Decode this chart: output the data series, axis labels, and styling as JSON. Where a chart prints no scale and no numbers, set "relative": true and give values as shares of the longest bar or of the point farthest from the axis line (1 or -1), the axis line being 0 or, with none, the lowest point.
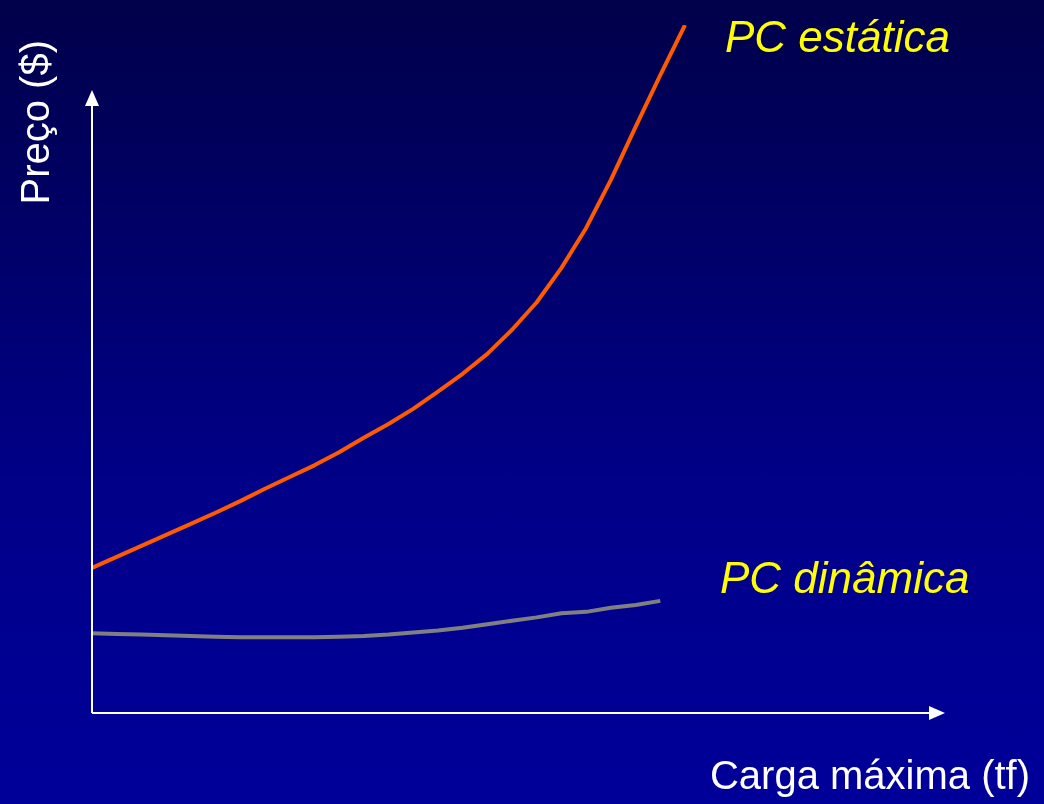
{
  "chart_data": {
    "type": "line",
    "relative": true,
    "xlabel": "Carga máxima (tf)",
    "ylabel": "Preço ($)",
    "legend": false,
    "marker": "none",
    "line_style": "solid",
    "categories": [
      null,
      null,
      null,
      null,
      null,
      null,
      null,
      null,
      null,
      null,
      null,
      null,
      null,
      null,
      null,
      null,
      null,
      null,
      null,
      null,
      null,
      null,
      null,
      null,
      null
    ],
    "series": [
      {
        "name": "PC estática",
        "color": "#ff5a00",
        "values": [
          0.211,
          0.227,
          0.243,
          0.259,
          0.275,
          0.291,
          0.308,
          0.326,
          0.343,
          0.36,
          0.379,
          0.4,
          0.42,
          0.442,
          0.467,
          0.493,
          0.522,
          0.557,
          0.597,
          0.647,
          0.705,
          0.775,
          0.852,
          0.927,
          1
        ]
      },
      {
        "name": "PC dinâmica",
        "color": "#808080",
        "values": [
          0.116,
          0.115,
          0.114,
          0.113,
          0.112,
          0.111,
          0.11,
          0.11,
          0.11,
          0.11,
          0.111,
          0.112,
          0.114,
          0.117,
          0.12,
          0.124,
          0.129,
          0.134,
          0.139,
          0.145,
          0.147,
          0.153,
          0.157,
          0.163,
          null
        ]
      }
    ]
  }
}
